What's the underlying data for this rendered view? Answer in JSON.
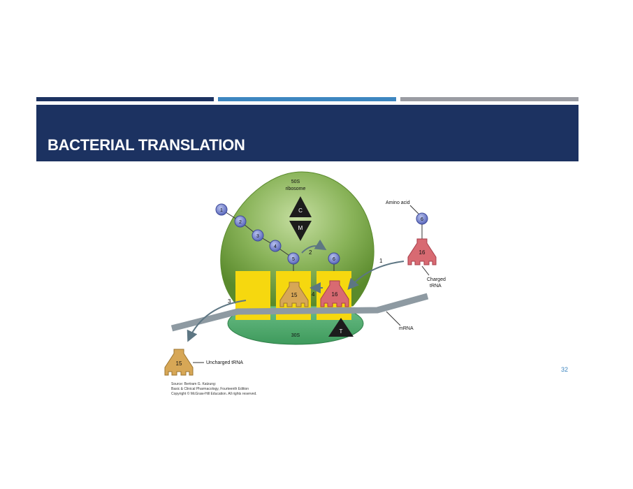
{
  "slide": {
    "title": "BACTERIAL TRANSLATION",
    "page_number": "32"
  },
  "diagram": {
    "ribosome_50s": [
      "50S",
      "ribosome"
    ],
    "ribosome_30s": "30S",
    "mrna_label": "mRNA",
    "amino_acid_label": "Amino acid",
    "charged_trna_label": [
      "Charged",
      "tRNA"
    ],
    "uncharged_trna_label": "Uncharged tRNA",
    "site_c": "C",
    "site_m": "M",
    "site_t": "T",
    "steps": [
      "1",
      "2",
      "3",
      "4"
    ],
    "chain": [
      "1",
      "2",
      "3",
      "4",
      "5"
    ],
    "site_aa": "6",
    "free_aa": "6",
    "trna_p": "15",
    "trna_a": "16",
    "trna_free_charged": "16",
    "trna_uncharged": "15",
    "source": [
      "Source: Bertram G. Katzung:",
      "Basic & Clinical Pharmacology, Fourteenth Edition",
      "Copyright © McGraw-Hill Education. All rights reserved."
    ]
  },
  "colors": {
    "navy": "#1c3261",
    "blue": "#3d86c0",
    "gray": "#9a9ca3",
    "ribosome_green": "#6a9a38",
    "yellow_site": "#f6d80f",
    "trna_red": "#d86a72",
    "trna_tan": "#d7a756",
    "amino_acid": "#6a78c8"
  }
}
